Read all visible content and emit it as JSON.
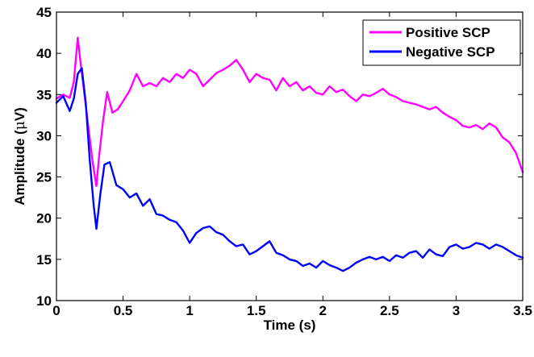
{
  "chart_data": {
    "type": "line",
    "title": "",
    "xlabel": "Time (s)",
    "ylabel_prefix": "Amplitude (",
    "ylabel_symbol": "μ",
    "ylabel_suffix": "V)",
    "xlim": [
      0,
      3.5
    ],
    "ylim": [
      10,
      45
    ],
    "xticks": [
      0,
      0.5,
      1,
      1.5,
      2,
      2.5,
      3,
      3.5
    ],
    "xtick_labels": [
      "0",
      "0.5",
      "1",
      "1.5",
      "2",
      "2.5",
      "3",
      "3.5"
    ],
    "yticks": [
      10,
      15,
      20,
      25,
      30,
      35,
      40,
      45
    ],
    "ytick_labels": [
      "10",
      "15",
      "20",
      "25",
      "30",
      "35",
      "40",
      "45"
    ],
    "grid": false,
    "legend_position": "top-right",
    "series": [
      {
        "name": "Positive SCP",
        "color": "#ff00ff",
        "x": [
          0,
          0.05,
          0.1,
          0.13,
          0.16,
          0.18,
          0.21,
          0.24,
          0.27,
          0.3,
          0.32,
          0.35,
          0.38,
          0.42,
          0.46,
          0.5,
          0.55,
          0.6,
          0.65,
          0.7,
          0.75,
          0.8,
          0.85,
          0.9,
          0.95,
          1.0,
          1.05,
          1.1,
          1.15,
          1.2,
          1.25,
          1.3,
          1.35,
          1.4,
          1.45,
          1.5,
          1.55,
          1.6,
          1.65,
          1.7,
          1.75,
          1.8,
          1.85,
          1.9,
          1.95,
          2.0,
          2.05,
          2.1,
          2.15,
          2.2,
          2.25,
          2.3,
          2.35,
          2.4,
          2.45,
          2.5,
          2.55,
          2.6,
          2.65,
          2.7,
          2.75,
          2.8,
          2.85,
          2.9,
          2.95,
          3.0,
          3.05,
          3.1,
          3.15,
          3.2,
          3.25,
          3.3,
          3.35,
          3.4,
          3.45,
          3.5
        ],
        "values": [
          34.5,
          35.0,
          34.6,
          36.5,
          41.9,
          39.0,
          35.0,
          31.0,
          27.0,
          23.9,
          27.5,
          31.8,
          35.3,
          32.8,
          33.2,
          34.2,
          35.5,
          37.5,
          36.0,
          36.4,
          36.0,
          37.0,
          36.5,
          37.5,
          37.0,
          38.0,
          37.5,
          36.0,
          36.8,
          37.6,
          38.0,
          38.5,
          39.2,
          38.0,
          36.5,
          37.5,
          37.0,
          36.8,
          35.5,
          37.0,
          36.0,
          36.5,
          35.5,
          36.0,
          35.2,
          35.0,
          36.0,
          35.3,
          35.6,
          34.8,
          34.2,
          35.0,
          34.8,
          35.2,
          35.7,
          35.0,
          34.7,
          34.2,
          34.0,
          33.8,
          33.5,
          33.2,
          33.5,
          32.8,
          32.3,
          31.9,
          31.2,
          31.0,
          31.3,
          30.8,
          31.5,
          31.0,
          29.8,
          29.2,
          27.9,
          25.6
        ]
      },
      {
        "name": "Negative SCP",
        "color": "#0000ff",
        "x": [
          0,
          0.05,
          0.1,
          0.13,
          0.16,
          0.19,
          0.22,
          0.25,
          0.28,
          0.3,
          0.33,
          0.36,
          0.4,
          0.45,
          0.5,
          0.55,
          0.6,
          0.65,
          0.7,
          0.75,
          0.8,
          0.85,
          0.9,
          0.95,
          1.0,
          1.05,
          1.1,
          1.15,
          1.2,
          1.25,
          1.3,
          1.35,
          1.4,
          1.45,
          1.5,
          1.55,
          1.6,
          1.65,
          1.7,
          1.75,
          1.8,
          1.85,
          1.9,
          1.95,
          2.0,
          2.05,
          2.1,
          2.15,
          2.2,
          2.25,
          2.3,
          2.35,
          2.4,
          2.45,
          2.5,
          2.55,
          2.6,
          2.65,
          2.7,
          2.75,
          2.8,
          2.85,
          2.9,
          2.95,
          3.0,
          3.05,
          3.1,
          3.15,
          3.2,
          3.25,
          3.3,
          3.35,
          3.4,
          3.45,
          3.5
        ],
        "values": [
          34.0,
          34.8,
          33.0,
          34.5,
          37.5,
          38.2,
          34.0,
          27.0,
          21.5,
          18.7,
          23.0,
          26.5,
          26.8,
          24.0,
          23.5,
          22.5,
          23.0,
          21.5,
          22.3,
          20.5,
          20.3,
          19.8,
          19.5,
          18.5,
          17.0,
          18.2,
          18.8,
          19.0,
          18.3,
          18.0,
          17.2,
          16.6,
          16.8,
          15.6,
          16.0,
          16.6,
          17.2,
          15.8,
          15.5,
          15.0,
          14.8,
          14.2,
          14.5,
          14.0,
          14.8,
          14.3,
          14.0,
          13.6,
          14.0,
          14.6,
          15.0,
          15.3,
          15.0,
          15.3,
          14.8,
          15.5,
          15.2,
          15.8,
          16.0,
          15.2,
          16.2,
          15.6,
          15.4,
          16.5,
          16.8,
          16.3,
          16.5,
          17.0,
          16.8,
          16.3,
          16.8,
          16.5,
          16.0,
          15.5,
          15.2
        ]
      }
    ]
  }
}
